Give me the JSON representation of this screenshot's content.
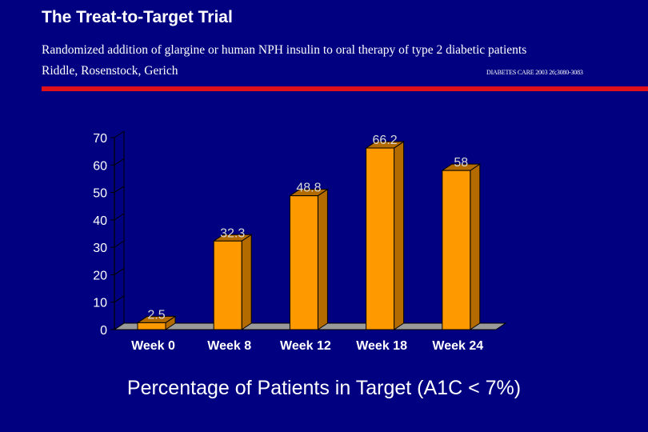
{
  "header": {
    "title": "The Treat-to-Target Trial",
    "subtitle": "Randomized addition of glargine or human NPH insulin to oral therapy of type 2 diabetic patients",
    "authors": "Riddle, Rosenstock, Gerich",
    "citation": "DIABETES CARE 2003 26;3080-3083"
  },
  "colors": {
    "background": "#000080",
    "accent_line": "#e0101a",
    "bar_front": "#ff9900",
    "bar_side": "#b36b00",
    "floor": "#9a9a9a",
    "text": "#ffffff",
    "data_label": "#d8d8d8"
  },
  "chart_data": {
    "type": "bar",
    "title": "Percentage of Patients in Target (A1C < 7%)",
    "categories": [
      "Week 0",
      "Week 8",
      "Week 12",
      "Week 18",
      "Week 24"
    ],
    "values": [
      2.5,
      32.3,
      48.8,
      66.2,
      58
    ],
    "value_labels": [
      "2.5",
      "32.3",
      "48.8",
      "66.2",
      "58"
    ],
    "y_ticks": [
      "0",
      "10",
      "20",
      "30",
      "40",
      "50",
      "60",
      "70"
    ],
    "ylim": [
      0,
      70
    ],
    "xlabel": "",
    "ylabel": "",
    "grid": false,
    "style": "3d"
  }
}
